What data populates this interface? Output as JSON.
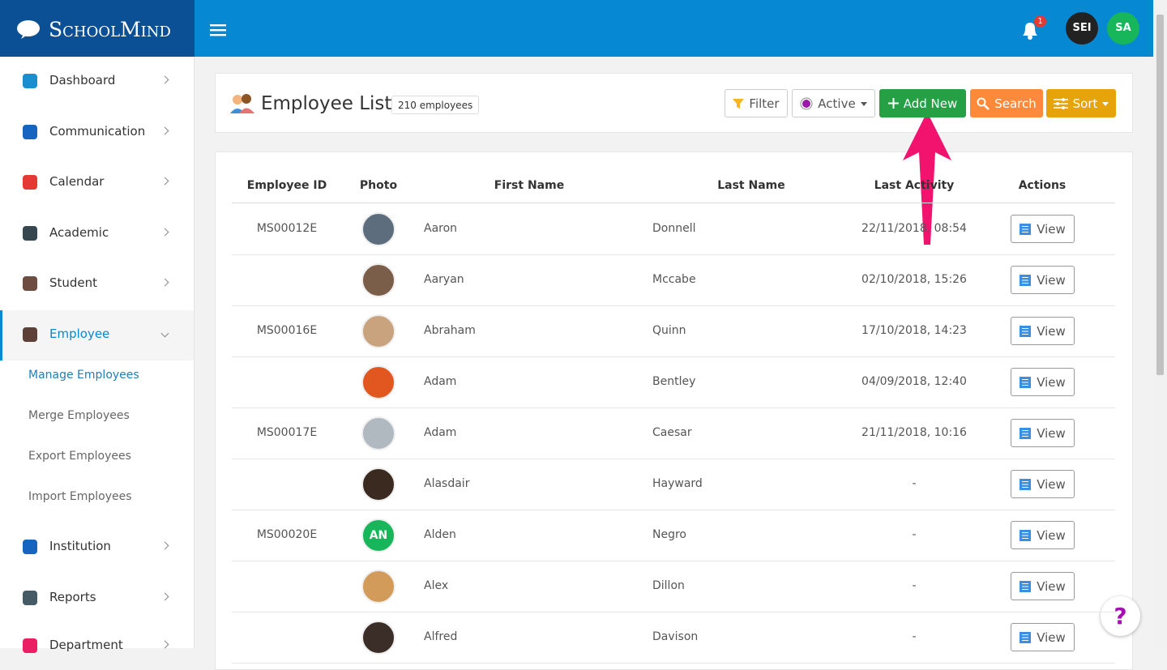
{
  "brand": "SchoolMind",
  "header": {
    "notifications": "1",
    "avatars": [
      "SEI",
      "SA"
    ]
  },
  "sidebar": {
    "items": [
      {
        "label": "Dashboard",
        "icon": "#1a8fd0"
      },
      {
        "label": "Communication",
        "icon": "#1565c0"
      },
      {
        "label": "Calendar",
        "icon": "#e53935"
      },
      {
        "label": "Academic",
        "icon": "#37474f"
      },
      {
        "label": "Student",
        "icon": "#6d4c41"
      },
      {
        "label": "Employee",
        "icon": "#5d4037",
        "active": true,
        "children": [
          "Manage Employees",
          "Merge Employees",
          "Export Employees",
          "Import Employees"
        ]
      },
      {
        "label": "Institution",
        "icon": "#1565c0"
      },
      {
        "label": "Reports",
        "icon": "#455a64"
      },
      {
        "label": "Department",
        "icon": "#e91e63"
      }
    ]
  },
  "page": {
    "title": "Employee List",
    "count": "210 employees",
    "buttons": [
      "Filter",
      "Active",
      "Add New",
      "Search",
      "Sort"
    ]
  },
  "table": {
    "columns": [
      "Employee ID",
      "Photo",
      "First Name",
      "Last Name",
      "Last Activity",
      "Actions"
    ],
    "action": "View",
    "rows": [
      {
        "id": "MS00012E",
        "first": "Aaron",
        "last": "Donnell",
        "activity": "22/11/2018, 08:54"
      },
      {
        "first": "Aaryan",
        "last": "Mccabe",
        "activity": "02/10/2018, 15:26"
      },
      {
        "id": "MS00016E",
        "first": "Abraham",
        "last": "Quinn",
        "activity": "17/10/2018, 14:23"
      },
      {
        "first": "Adam",
        "last": "Bentley",
        "activity": "04/09/2018, 12:40"
      },
      {
        "id": "MS00017E",
        "first": "Adam",
        "last": "Caesar",
        "activity": "21/11/2018, 10:16"
      },
      {
        "first": "Alasdair",
        "last": "Hayward",
        "activity": "-"
      },
      {
        "id": "MS00020E",
        "initials": "AN",
        "first": "Alden",
        "last": "Negro",
        "activity": "-"
      },
      {
        "first": "Alex",
        "last": "Dillon",
        "activity": "-"
      },
      {
        "first": "Alfred",
        "last": "Davison",
        "activity": "-"
      }
    ]
  },
  "help": "?"
}
